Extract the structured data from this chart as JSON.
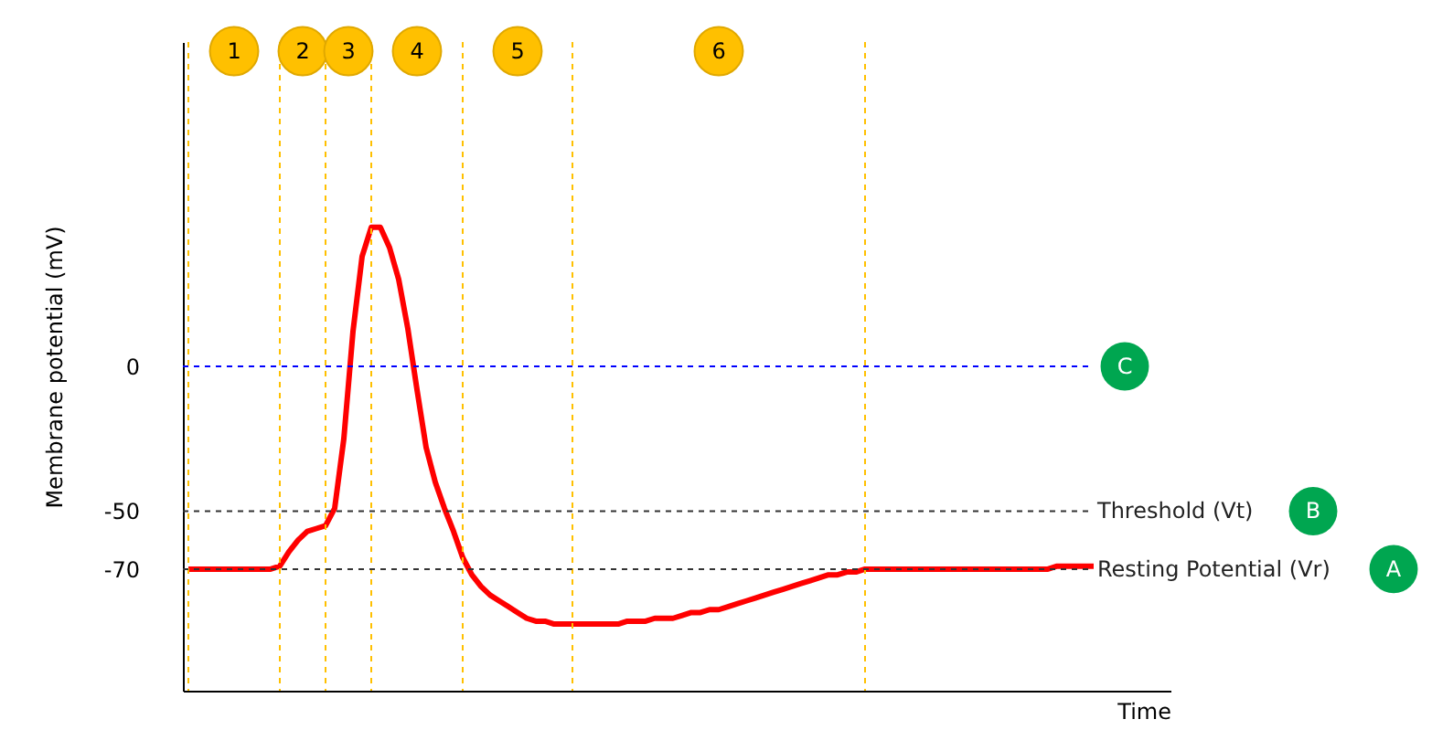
{
  "chart_data": {
    "type": "line",
    "xlabel": "Time",
    "ylabel": "Membrane potential (mV)",
    "categories": [
      null,
      null,
      null,
      null,
      null,
      null,
      null,
      null,
      null,
      null,
      null,
      null,
      null,
      null,
      null,
      null,
      null,
      null,
      null,
      null,
      null,
      null,
      null,
      null,
      null,
      null,
      null,
      null,
      null,
      null,
      null,
      null,
      null,
      null,
      null,
      null,
      null,
      null,
      null,
      null,
      null,
      null,
      null,
      null,
      null,
      null,
      null,
      null,
      null,
      null,
      null,
      null,
      null,
      null,
      null,
      null,
      null,
      null,
      null,
      null,
      null,
      null,
      null,
      null,
      null,
      null,
      null,
      null,
      null,
      null,
      null,
      null,
      null,
      null,
      null,
      null,
      null,
      null,
      null,
      null,
      null,
      null,
      null,
      null,
      null,
      null,
      null,
      null,
      null,
      null,
      null,
      null,
      null,
      null,
      null,
      null,
      null,
      null,
      null,
      null
    ],
    "series": [
      {
        "color": "#ff0000",
        "values": [
          -70,
          -70,
          -70,
          -70,
          -70,
          -70,
          -70,
          -70,
          -70,
          -70,
          -69,
          -64,
          -60,
          -57,
          -56,
          -55,
          -49,
          -25,
          12,
          38,
          48,
          48,
          41,
          30,
          13,
          -8,
          -28,
          -40,
          -49,
          -57,
          -66,
          -72,
          -76,
          -79,
          -81,
          -83,
          -85,
          -87,
          -88,
          -88,
          -89,
          -89,
          -89,
          -89,
          -89,
          -89,
          -89,
          -89,
          -88,
          -88,
          -88,
          -87,
          -87,
          -87,
          -86,
          -85,
          -85,
          -84,
          -84,
          -83,
          -82,
          -81,
          -80,
          -79,
          -78,
          -77,
          -76,
          -75,
          -74,
          -73,
          -72,
          -72,
          -71,
          -71,
          -70,
          -70,
          -70,
          -70,
          -70,
          -70,
          -70,
          -70,
          -70,
          -70,
          -70,
          -70,
          -70,
          -70,
          -70,
          -70,
          -70,
          -70,
          -70,
          -70,
          -70,
          -69,
          -69,
          -69,
          -69,
          -69
        ]
      }
    ],
    "ylim": [
      -112,
      112
    ],
    "yticks": [
      0,
      -50,
      -70
    ],
    "tick_labels": "y",
    "grid": "x",
    "ref_lines": [
      {
        "axis": "y",
        "value": 0,
        "label": null,
        "color": "#0000ff",
        "line_style": "dashed"
      },
      {
        "axis": "y",
        "value": -50,
        "label": "Threshold (Vt)",
        "color": "#333333",
        "line_style": "dashed"
      },
      {
        "axis": "y",
        "value": -70,
        "label": "Resting Potential (Vr)",
        "color": "#333333",
        "line_style": "dashed"
      }
    ],
    "annotations": [
      "1",
      "2",
      "3",
      "4",
      "5",
      "6",
      "C",
      "B",
      "A"
    ]
  }
}
